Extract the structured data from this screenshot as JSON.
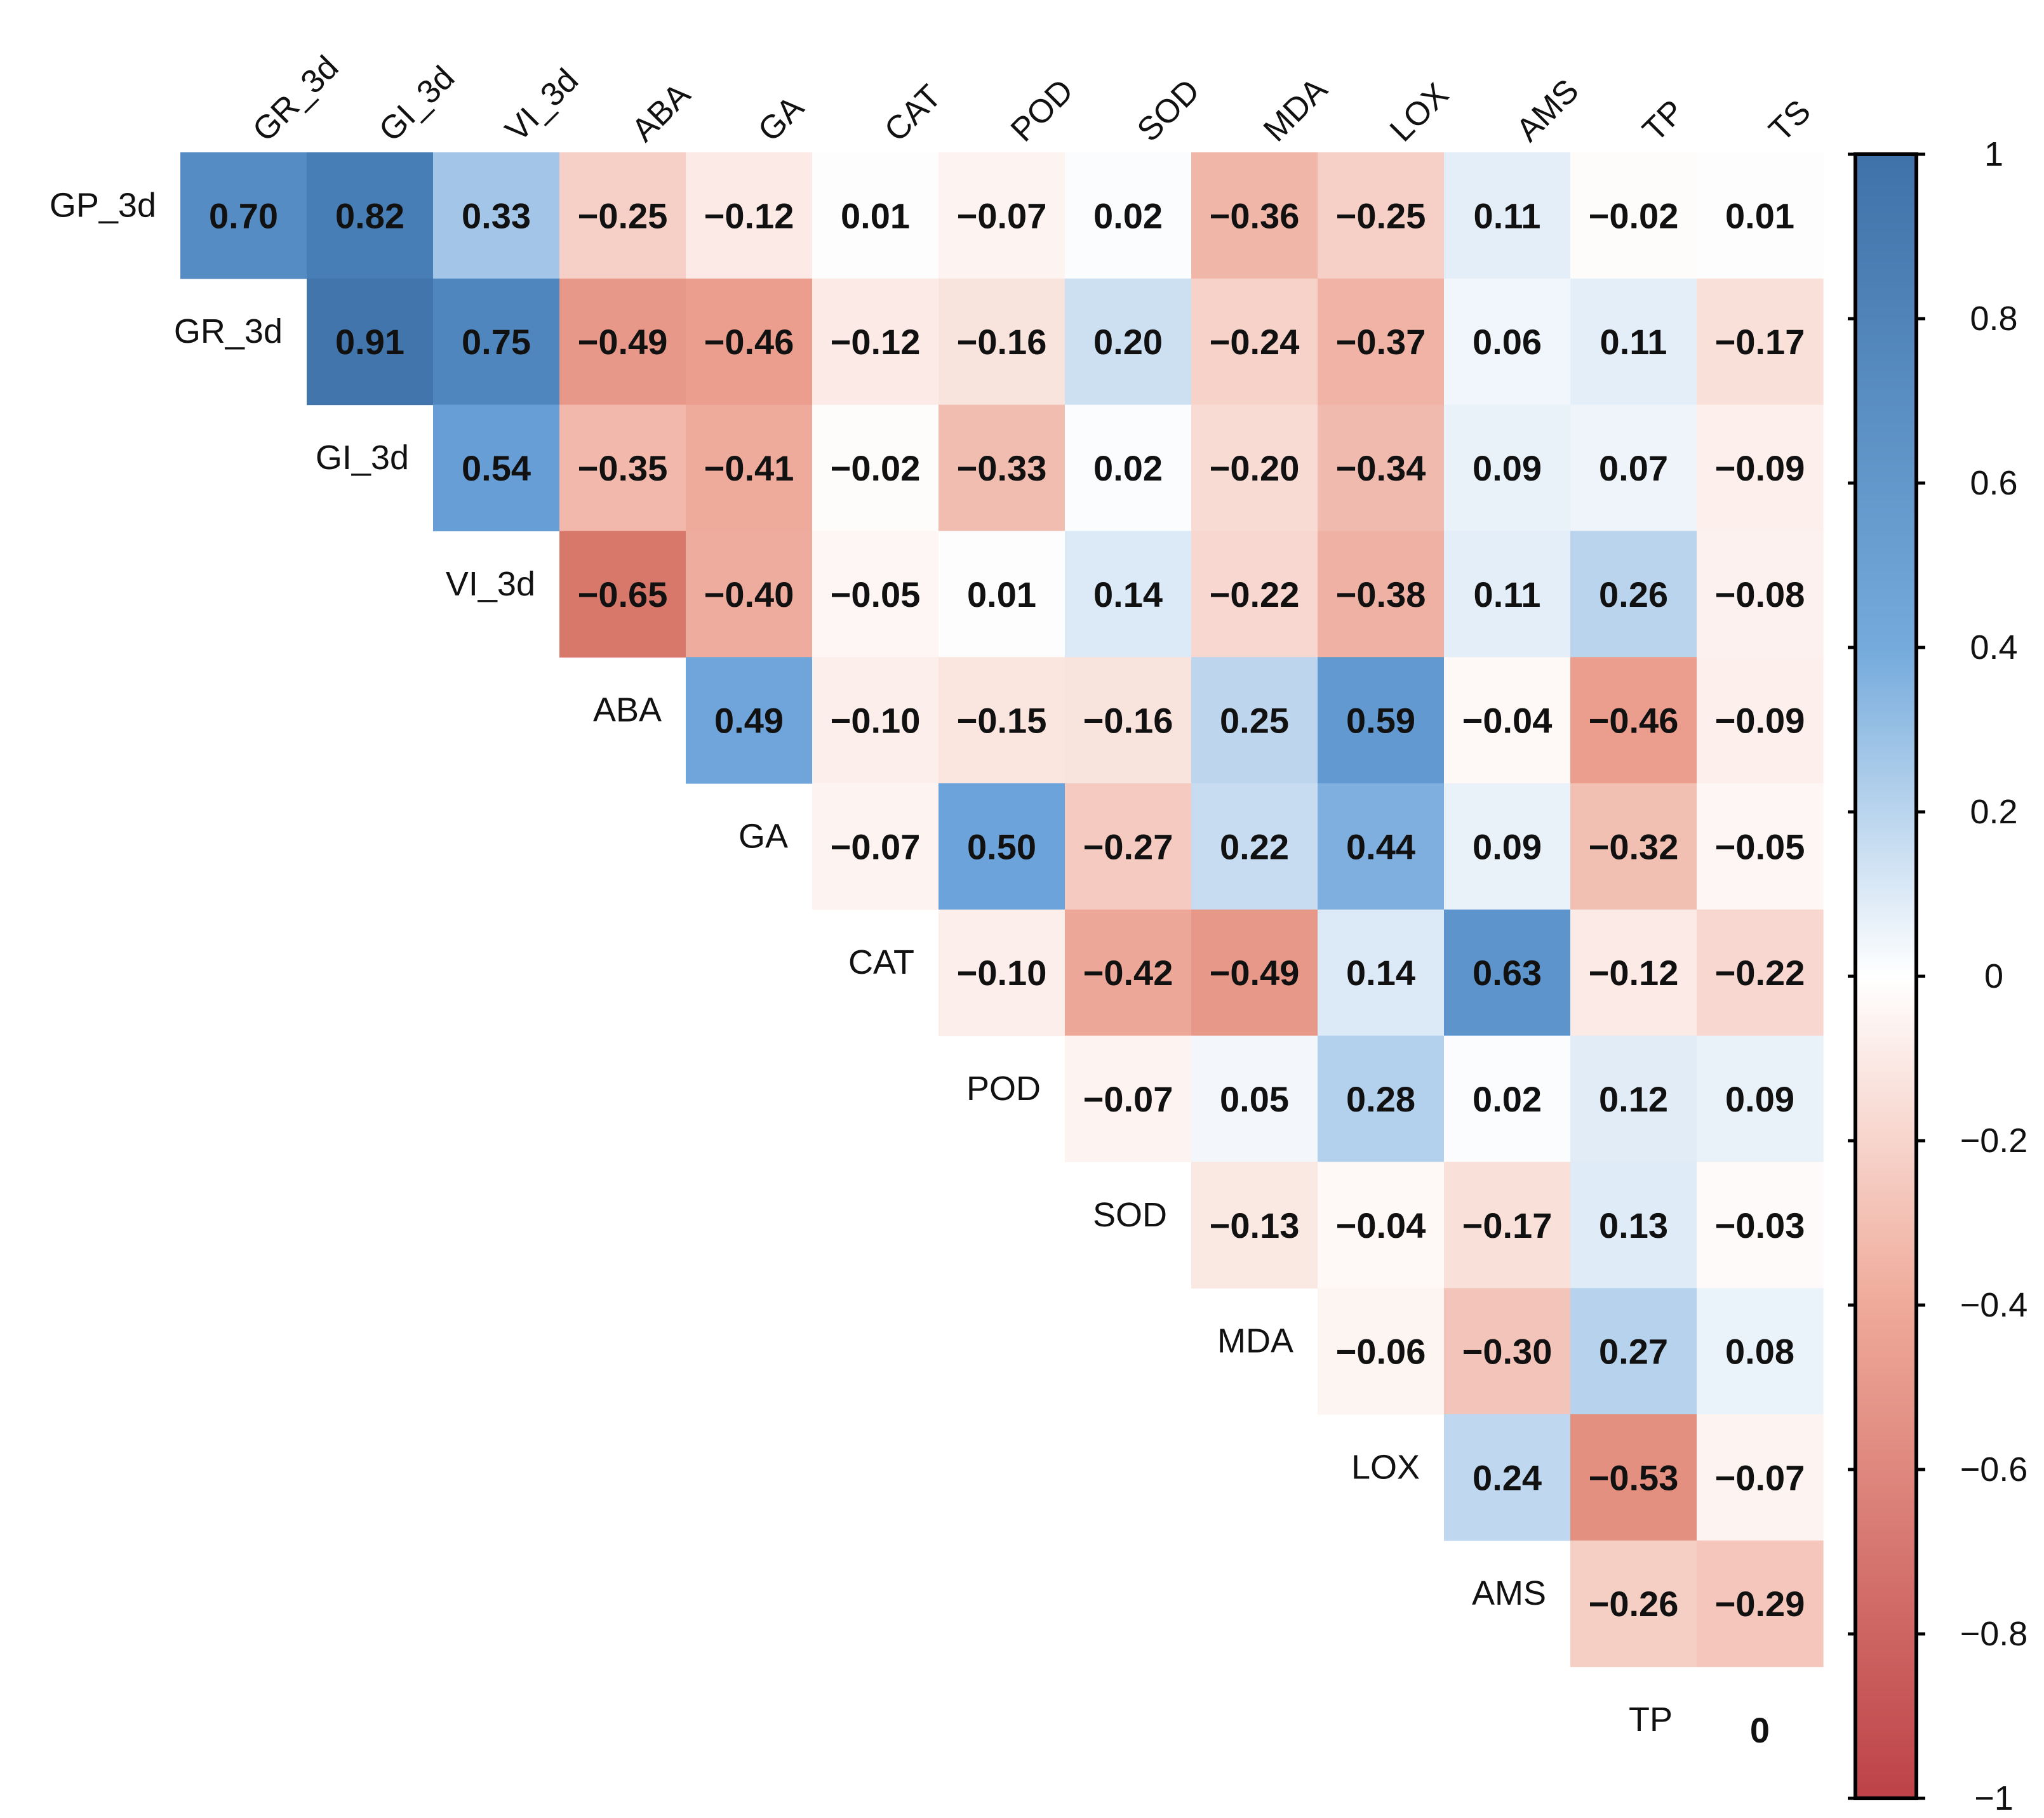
{
  "chart_data": {
    "type": "heatmap",
    "subtype": "correlation-upper-triangle",
    "variables": [
      "GP_3d",
      "GR_3d",
      "GI_3d",
      "VI_3d",
      "ABA",
      "GA",
      "CAT",
      "POD",
      "SOD",
      "MDA",
      "LOX",
      "AMS",
      "TP",
      "TS"
    ],
    "column_labels": [
      "GR_3d",
      "GI_3d",
      "VI_3d",
      "ABA",
      "GA",
      "CAT",
      "POD",
      "SOD",
      "MDA",
      "LOX",
      "AMS",
      "TP",
      "TS"
    ],
    "row_labels": [
      "GP_3d",
      "GR_3d",
      "GI_3d",
      "VI_3d",
      "ABA",
      "GA",
      "CAT",
      "POD",
      "SOD",
      "MDA",
      "LOX",
      "AMS",
      "TP"
    ],
    "matrix": [
      [
        0.7,
        0.82,
        0.33,
        -0.25,
        -0.12,
        0.01,
        -0.07,
        0.02,
        -0.36,
        -0.25,
        0.11,
        -0.02,
        0.01
      ],
      [
        null,
        0.91,
        0.75,
        -0.49,
        -0.46,
        -0.12,
        -0.16,
        0.2,
        -0.24,
        -0.37,
        0.06,
        0.11,
        -0.17
      ],
      [
        null,
        null,
        0.54,
        -0.35,
        -0.41,
        -0.02,
        -0.33,
        0.02,
        -0.2,
        -0.34,
        0.09,
        0.07,
        -0.09
      ],
      [
        null,
        null,
        null,
        -0.65,
        -0.4,
        -0.05,
        0.01,
        0.14,
        -0.22,
        -0.38,
        0.11,
        0.26,
        -0.08
      ],
      [
        null,
        null,
        null,
        null,
        0.49,
        -0.1,
        -0.15,
        -0.16,
        0.25,
        0.59,
        -0.04,
        -0.46,
        -0.09
      ],
      [
        null,
        null,
        null,
        null,
        null,
        -0.07,
        0.5,
        -0.27,
        0.22,
        0.44,
        0.09,
        -0.32,
        -0.05
      ],
      [
        null,
        null,
        null,
        null,
        null,
        null,
        -0.1,
        -0.42,
        -0.49,
        0.14,
        0.63,
        -0.12,
        -0.22
      ],
      [
        null,
        null,
        null,
        null,
        null,
        null,
        null,
        -0.07,
        0.05,
        0.28,
        0.02,
        0.12,
        0.09
      ],
      [
        null,
        null,
        null,
        null,
        null,
        null,
        null,
        null,
        -0.13,
        -0.04,
        -0.17,
        0.13,
        -0.03
      ],
      [
        null,
        null,
        null,
        null,
        null,
        null,
        null,
        null,
        null,
        -0.06,
        -0.3,
        0.27,
        0.08
      ],
      [
        null,
        null,
        null,
        null,
        null,
        null,
        null,
        null,
        null,
        null,
        0.24,
        -0.53,
        -0.07
      ],
      [
        null,
        null,
        null,
        null,
        null,
        null,
        null,
        null,
        null,
        null,
        null,
        -0.26,
        -0.29
      ],
      [
        null,
        null,
        null,
        null,
        null,
        null,
        null,
        null,
        null,
        null,
        null,
        null,
        0
      ]
    ],
    "value_labels": [
      [
        "0.70",
        "0.82",
        "0.33",
        "−0.25",
        "−0.12",
        "0.01",
        "−0.07",
        "0.02",
        "−0.36",
        "−0.25",
        "0.11",
        "−0.02",
        "0.01"
      ],
      [
        null,
        "0.91",
        "0.75",
        "−0.49",
        "−0.46",
        "−0.12",
        "−0.16",
        "0.20",
        "−0.24",
        "−0.37",
        "0.06",
        "0.11",
        "−0.17"
      ],
      [
        null,
        null,
        "0.54",
        "−0.35",
        "−0.41",
        "−0.02",
        "−0.33",
        "0.02",
        "−0.20",
        "−0.34",
        "0.09",
        "0.07",
        "−0.09"
      ],
      [
        null,
        null,
        null,
        "−0.65",
        "−0.40",
        "−0.05",
        "0.01",
        "0.14",
        "−0.22",
        "−0.38",
        "0.11",
        "0.26",
        "−0.08"
      ],
      [
        null,
        null,
        null,
        null,
        "0.49",
        "−0.10",
        "−0.15",
        "−0.16",
        "0.25",
        "0.59",
        "−0.04",
        "−0.46",
        "−0.09"
      ],
      [
        null,
        null,
        null,
        null,
        null,
        "−0.07",
        "0.50",
        "−0.27",
        "0.22",
        "0.44",
        "0.09",
        "−0.32",
        "−0.05"
      ],
      [
        null,
        null,
        null,
        null,
        null,
        null,
        "−0.10",
        "−0.42",
        "−0.49",
        "0.14",
        "0.63",
        "−0.12",
        "−0.22"
      ],
      [
        null,
        null,
        null,
        null,
        null,
        null,
        null,
        "−0.07",
        "0.05",
        "0.28",
        "0.02",
        "0.12",
        "0.09"
      ],
      [
        null,
        null,
        null,
        null,
        null,
        null,
        null,
        null,
        "−0.13",
        "−0.04",
        "−0.17",
        "0.13",
        "−0.03"
      ],
      [
        null,
        null,
        null,
        null,
        null,
        null,
        null,
        null,
        null,
        "−0.06",
        "−0.30",
        "0.27",
        "0.08"
      ],
      [
        null,
        null,
        null,
        null,
        null,
        null,
        null,
        null,
        null,
        null,
        "0.24",
        "−0.53",
        "−0.07"
      ],
      [
        null,
        null,
        null,
        null,
        null,
        null,
        null,
        null,
        null,
        null,
        null,
        "−0.26",
        "−0.29"
      ],
      [
        null,
        null,
        null,
        null,
        null,
        null,
        null,
        null,
        null,
        null,
        null,
        null,
        "0"
      ]
    ],
    "colorbar": {
      "range": [
        -1,
        1
      ],
      "ticks": [
        1,
        0.8,
        0.6,
        0.4,
        0.2,
        0,
        -0.2,
        -0.4,
        -0.6,
        -0.8,
        -1
      ],
      "tick_labels": [
        "1",
        "0.8",
        "0.6",
        "0.4",
        "0.2",
        "0",
        "−0.2",
        "−0.4",
        "−0.6",
        "−0.8",
        "−1"
      ],
      "colors": {
        "negative": "#b2182b",
        "neutral": "#ffffff",
        "positive": "#2c6aa6"
      },
      "placement": "right"
    },
    "title": "",
    "xlabel": "",
    "ylabel": ""
  }
}
